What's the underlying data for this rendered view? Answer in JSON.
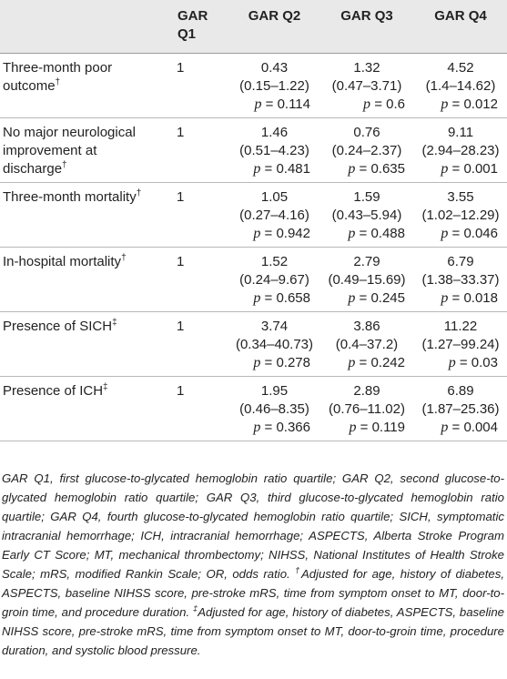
{
  "table": {
    "headers": [
      "",
      "GAR Q1",
      "GAR Q2",
      "GAR Q3",
      "GAR Q4"
    ],
    "p_label": "p",
    "p_eq": " = ",
    "rows": [
      {
        "label": "Three-month poor outcome",
        "mark": "†",
        "q1": "1",
        "q2": {
          "or": "0.43",
          "ci": "(0.15–1.22)",
          "p": "0.114"
        },
        "q3": {
          "or": "1.32",
          "ci": "(0.47–3.71)",
          "p": "0.6"
        },
        "q4": {
          "or": "4.52",
          "ci": "(1.4–14.62)",
          "p": "0.012"
        }
      },
      {
        "label": "No major neurological improvement at discharge",
        "mark": "†",
        "q1": "1",
        "q2": {
          "or": "1.46",
          "ci": "(0.51–4.23)",
          "p": "0.481"
        },
        "q3": {
          "or": "0.76",
          "ci": "(0.24–2.37)",
          "p": "0.635"
        },
        "q4": {
          "or": "9.11",
          "ci": "(2.94–28.23)",
          "p": "0.001"
        }
      },
      {
        "label": "Three-month mortality",
        "mark": "†",
        "q1": "1",
        "q2": {
          "or": "1.05",
          "ci": "(0.27–4.16)",
          "p": "0.942"
        },
        "q3": {
          "or": "1.59",
          "ci": "(0.43–5.94)",
          "p": "0.488"
        },
        "q4": {
          "or": "3.55",
          "ci": "(1.02–12.29)",
          "p": "0.046"
        }
      },
      {
        "label": "In-hospital mortality",
        "mark": "†",
        "q1": "1",
        "q2": {
          "or": "1.52",
          "ci": "(0.24–9.67)",
          "p": "0.658"
        },
        "q3": {
          "or": "2.79",
          "ci": "(0.49–15.69)",
          "p": "0.245"
        },
        "q4": {
          "or": "6.79",
          "ci": "(1.38–33.37)",
          "p": "0.018"
        }
      },
      {
        "label": "Presence of SICH",
        "mark": "‡",
        "q1": "1",
        "q2": {
          "or": "3.74",
          "ci": "(0.34–40.73)",
          "p": "0.278"
        },
        "q3": {
          "or": "3.86",
          "ci": "(0.4–37.2)",
          "p": "0.242"
        },
        "q4": {
          "or": "11.22",
          "ci": "(1.27–99.24)",
          "p": "0.03"
        }
      },
      {
        "label": "Presence of ICH",
        "mark": "‡",
        "q1": "1",
        "q2": {
          "or": "1.95",
          "ci": "(0.46–8.35)",
          "p": "0.366"
        },
        "q3": {
          "or": "2.89",
          "ci": "(0.76–11.02)",
          "p": "0.119"
        },
        "q4": {
          "or": "6.89",
          "ci": "(1.87–25.36)",
          "p": "0.004"
        }
      }
    ]
  },
  "footnote": {
    "abbreviations": "GAR Q1, first glucose-to-glycated hemoglobin ratio quartile; GAR Q2, second glucose-to-glycated hemoglobin ratio quartile; GAR Q3, third glucose-to-glycated hemoglobin ratio quartile; GAR Q4, fourth glucose-to-glycated hemoglobin ratio quartile; SICH, symptomatic intracranial hemorrhage; ICH, intracranial hemorrhage; ASPECTS, Alberta Stroke Program Early CT Score; MT, mechanical thrombectomy; NIHSS, National Institutes of Health Stroke Scale; mRS, modified Rankin Scale; OR, odds ratio. ",
    "dagger_mark": "†",
    "dagger_text": "Adjusted for age, history of diabetes, ASPECTS, baseline NIHSS score, pre-stroke mRS, time from symptom onset to MT, door-to-groin time, and procedure duration. ",
    "ddagger_mark": "‡",
    "ddagger_text": "Adjusted for age, history of diabetes, ASPECTS, baseline NIHSS score, pre-stroke mRS, time from symptom onset to MT, door-to-groin time, procedure duration, and systolic blood pressure."
  }
}
